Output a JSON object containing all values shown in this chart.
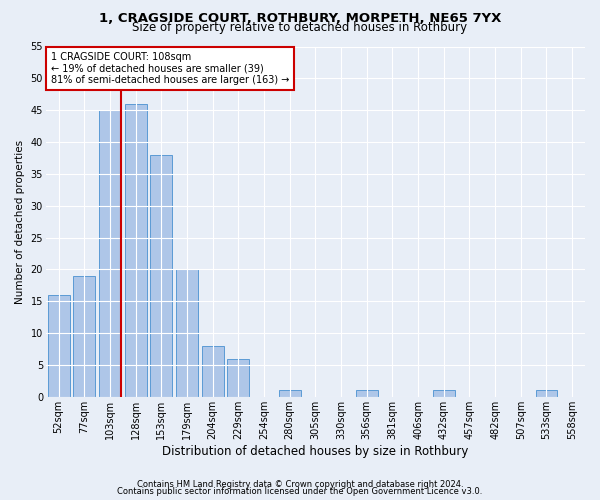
{
  "title1": "1, CRAGSIDE COURT, ROTHBURY, MORPETH, NE65 7YX",
  "title2": "Size of property relative to detached houses in Rothbury",
  "xlabel": "Distribution of detached houses by size in Rothbury",
  "ylabel": "Number of detached properties",
  "footnote1": "Contains HM Land Registry data © Crown copyright and database right 2024.",
  "footnote2": "Contains public sector information licensed under the Open Government Licence v3.0.",
  "categories": [
    "52sqm",
    "77sqm",
    "103sqm",
    "128sqm",
    "153sqm",
    "179sqm",
    "204sqm",
    "229sqm",
    "254sqm",
    "280sqm",
    "305sqm",
    "330sqm",
    "356sqm",
    "381sqm",
    "406sqm",
    "432sqm",
    "457sqm",
    "482sqm",
    "507sqm",
    "533sqm",
    "558sqm"
  ],
  "values": [
    16,
    19,
    45,
    46,
    38,
    20,
    8,
    6,
    0,
    1,
    0,
    0,
    1,
    0,
    0,
    1,
    0,
    0,
    0,
    1,
    0
  ],
  "bar_color": "#aec6e8",
  "bar_edge_color": "#5b9bd5",
  "background_color": "#e8eef7",
  "grid_color": "#ffffff",
  "marker_line_color": "#cc0000",
  "annotation_line1": "1 CRAGSIDE COURT: 108sqm",
  "annotation_line2": "← 19% of detached houses are smaller (39)",
  "annotation_line3": "81% of semi-detached houses are larger (163) →",
  "annotation_box_color": "#ffffff",
  "annotation_box_edge": "#cc0000",
  "ylim": [
    0,
    55
  ],
  "yticks": [
    0,
    5,
    10,
    15,
    20,
    25,
    30,
    35,
    40,
    45,
    50,
    55
  ],
  "title1_fontsize": 9.5,
  "title2_fontsize": 8.5,
  "xlabel_fontsize": 8.5,
  "ylabel_fontsize": 7.5,
  "tick_fontsize": 7,
  "footnote_fontsize": 6,
  "annot_fontsize": 7
}
